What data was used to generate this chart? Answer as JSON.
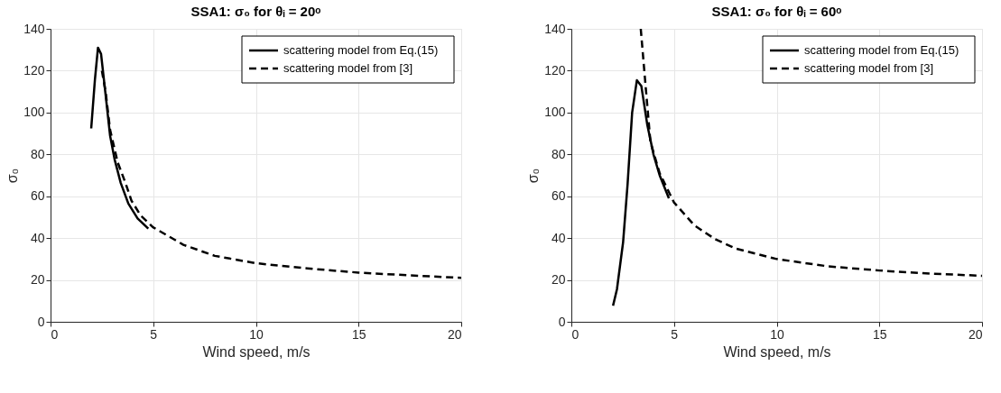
{
  "chart_data": [
    {
      "type": "line",
      "title": "SSA1: σ₀ for θᵢ = 20ᵒ",
      "xlabel": "Wind speed, m/s",
      "ylabel": "σ₀",
      "xlim": [
        0,
        20
      ],
      "ylim": [
        0,
        140
      ],
      "xticks": [
        0,
        5,
        10,
        15,
        20
      ],
      "yticks": [
        0,
        20,
        40,
        60,
        80,
        100,
        120,
        140
      ],
      "grid": true,
      "legend": "top right",
      "marker": "none",
      "series": [
        {
          "name": "scattering model from Eq.(15)",
          "color": "#000000",
          "line_style": "solid",
          "x": [
            1.98,
            2.16,
            2.31,
            2.46,
            2.68,
            2.9,
            3.12,
            3.42,
            3.79,
            4.24,
            4.76
          ],
          "values": [
            92.4,
            115.6,
            131,
            128,
            108.6,
            88.9,
            77.6,
            66.3,
            56.5,
            49.4,
            44.5
          ]
        },
        {
          "name": "scattering model from [3]",
          "color": "#000000",
          "line_style": "dashed",
          "x": [
            2.5,
            2.68,
            2.9,
            3.27,
            3.65,
            3.94,
            4.39,
            4.99,
            6.47,
            8,
            10,
            12.5,
            15,
            17.5,
            20
          ],
          "values": [
            120,
            110,
            91.7,
            76.2,
            66.3,
            57.9,
            50.8,
            45.2,
            36.8,
            31.5,
            28,
            25.5,
            23.5,
            22.2,
            21
          ]
        }
      ]
    },
    {
      "type": "line",
      "title": "SSA1: σ₀ for θᵢ = 60ᵒ",
      "xlabel": "Wind speed, m/s",
      "ylabel": "σ₀",
      "xlim": [
        0,
        20
      ],
      "ylim": [
        0,
        140
      ],
      "xticks": [
        0,
        5,
        10,
        15,
        20
      ],
      "yticks": [
        0,
        20,
        40,
        60,
        80,
        100,
        120,
        140
      ],
      "grid": true,
      "legend": "top right",
      "marker": "none",
      "series": [
        {
          "name": "scattering model from Eq.(15)",
          "color": "#000000",
          "line_style": "solid",
          "x": [
            2.03,
            2.22,
            2.52,
            2.74,
            2.96,
            3.19,
            3.41,
            3.7,
            4.0,
            4.3,
            4.75
          ],
          "values": [
            7.7,
            15.5,
            38,
            66,
            100,
            115.4,
            112.6,
            94,
            80,
            70,
            59
          ]
        },
        {
          "name": "scattering model from [3]",
          "color": "#000000",
          "line_style": "dashed",
          "x": [
            3.38,
            3.63,
            3.85,
            4.3,
            5,
            6,
            7,
            8,
            10,
            12.5,
            15,
            17.5,
            20
          ],
          "values": [
            140,
            111,
            86,
            71,
            57,
            46,
            39.5,
            35,
            30,
            26.5,
            24.5,
            23,
            22
          ]
        }
      ]
    }
  ]
}
